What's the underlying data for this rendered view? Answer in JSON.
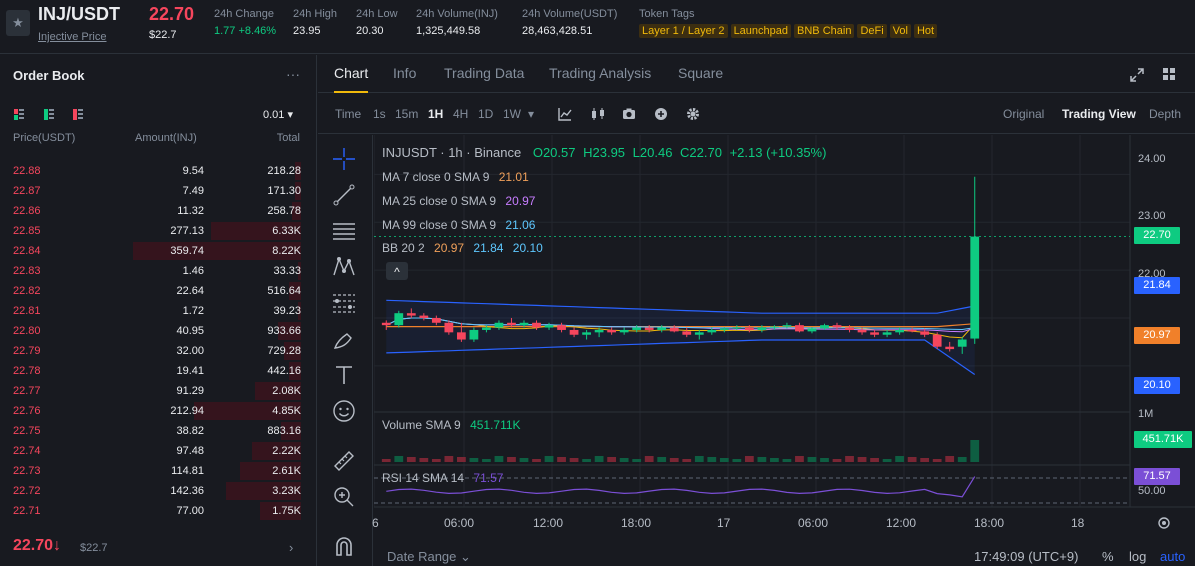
{
  "header": {
    "pair": "INJ/USDT",
    "pair_sub": "Injective Price",
    "last_price": "22.70",
    "last_price_usd": "$22.7",
    "stats": [
      {
        "key": "24h Change",
        "value": "1.77 +8.46%",
        "green": true
      },
      {
        "key": "24h High",
        "value": "23.95"
      },
      {
        "key": "24h Low",
        "value": "20.30"
      },
      {
        "key": "24h Volume(INJ)",
        "value": "1,325,449.58"
      },
      {
        "key": "24h Volume(USDT)",
        "value": "28,463,428.51"
      }
    ],
    "tags_label": "Token Tags",
    "tags": [
      "Layer 1 / Layer 2",
      "Launchpad",
      "BNB Chain",
      "DeFi",
      "Vol",
      "Hot"
    ]
  },
  "orderbook": {
    "title": "Order Book",
    "more": "···",
    "tick": "0.01 ▾",
    "headers": {
      "price": "Price(USDT)",
      "amount": "Amount(INJ)",
      "total": "Total"
    },
    "rows": [
      {
        "price": "22.88",
        "amount": "9.54",
        "total": "218.28",
        "depth": 0.02
      },
      {
        "price": "22.87",
        "amount": "7.49",
        "total": "171.30",
        "depth": 0.02
      },
      {
        "price": "22.86",
        "amount": "11.32",
        "total": "258.78",
        "depth": 0.03
      },
      {
        "price": "22.85",
        "amount": "277.13",
        "total": "6.33K",
        "depth": 0.31
      },
      {
        "price": "22.84",
        "amount": "359.74",
        "total": "8.22K",
        "depth": 0.58
      },
      {
        "price": "22.83",
        "amount": "1.46",
        "total": "33.33",
        "depth": 0.01
      },
      {
        "price": "22.82",
        "amount": "22.64",
        "total": "516.64",
        "depth": 0.04
      },
      {
        "price": "22.81",
        "amount": "1.72",
        "total": "39.23",
        "depth": 0.01
      },
      {
        "price": "22.80",
        "amount": "40.95",
        "total": "933.66",
        "depth": 0.08
      },
      {
        "price": "22.79",
        "amount": "32.00",
        "total": "729.28",
        "depth": 0.06
      },
      {
        "price": "22.78",
        "amount": "19.41",
        "total": "442.16",
        "depth": 0.04
      },
      {
        "price": "22.77",
        "amount": "91.29",
        "total": "2.08K",
        "depth": 0.16
      },
      {
        "price": "22.76",
        "amount": "212.94",
        "total": "4.85K",
        "depth": 0.37
      },
      {
        "price": "22.75",
        "amount": "38.82",
        "total": "883.16",
        "depth": 0.07
      },
      {
        "price": "22.74",
        "amount": "97.48",
        "total": "2.22K",
        "depth": 0.17
      },
      {
        "price": "22.73",
        "amount": "114.81",
        "total": "2.61K",
        "depth": 0.21
      },
      {
        "price": "22.72",
        "amount": "142.36",
        "total": "3.23K",
        "depth": 0.26
      },
      {
        "price": "22.71",
        "amount": "77.00",
        "total": "1.75K",
        "depth": 0.14
      }
    ],
    "last_price": "22.70↓",
    "last_price_usd": "$22.7",
    "arrow": "›"
  },
  "tabs": [
    "Chart",
    "Info",
    "Trading Data",
    "Trading Analysis",
    "Square"
  ],
  "toolbar": {
    "time_label": "Time",
    "intervals": [
      "1s",
      "15m",
      "1H",
      "4H",
      "1D",
      "1W"
    ],
    "active_interval": "1H",
    "interval_more": "▾",
    "views": [
      "Original",
      "Trading View",
      "Depth"
    ],
    "active_view": "Trading View"
  },
  "chart": {
    "symbol_line": "INJUSDT · 1h · Binance",
    "ohlc": {
      "o": "O20.57",
      "h": "H23.95",
      "l": "L20.46",
      "c": "C22.70",
      "chg": "+2.13 (+10.35%)"
    },
    "ma7": {
      "label": "MA 7 close 0 SMA 9",
      "value": "21.01"
    },
    "ma25": {
      "label": "MA 25 close 0 SMA 9",
      "value": "20.97"
    },
    "ma99": {
      "label": "MA 99 close 0 SMA 9",
      "value": "21.06"
    },
    "bb": {
      "label": "BB 20 2",
      "v1": "20.97",
      "v2": "21.84",
      "v3": "20.10"
    },
    "collapse": "^",
    "volume": {
      "label": "Volume SMA 9",
      "value": "451.711K"
    },
    "rsi": {
      "label": "RSI 14 SMA 14",
      "value": "71.57"
    },
    "price_axis": [
      "24.00",
      "23.00",
      "22.00",
      "1M",
      "50.00"
    ],
    "price_labels": [
      {
        "text": "22.70",
        "color": "#0ecb81"
      },
      {
        "text": "21.84",
        "color": "#2962ff"
      },
      {
        "text": "20.97",
        "color": "#f0802a"
      },
      {
        "text": "20.10",
        "color": "#2962ff"
      },
      {
        "text": "451.71K",
        "color": "#0ecb81"
      },
      {
        "text": "71.57",
        "color": "#7b4fd6"
      }
    ],
    "time_axis": [
      "6",
      "06:00",
      "12:00",
      "18:00",
      "17",
      "06:00",
      "12:00",
      "18:00",
      "18"
    ],
    "date_range": "Date Range ⌄",
    "clock": "17:49:09 (UTC+9)",
    "bottom_opts": [
      "%",
      "log",
      "auto"
    ]
  },
  "chart_data": {
    "type": "candlestick",
    "ylim": [
      19.6,
      24.3
    ],
    "candles": [
      [
        20.9,
        20.95,
        20.75,
        20.85
      ],
      [
        20.85,
        21.15,
        20.8,
        21.1
      ],
      [
        21.1,
        21.2,
        21.0,
        21.05
      ],
      [
        21.05,
        21.1,
        20.95,
        21.0
      ],
      [
        21.0,
        21.05,
        20.85,
        20.9
      ],
      [
        20.9,
        20.95,
        20.65,
        20.7
      ],
      [
        20.7,
        20.9,
        20.5,
        20.55
      ],
      [
        20.55,
        20.8,
        20.5,
        20.75
      ],
      [
        20.75,
        20.85,
        20.7,
        20.8
      ],
      [
        20.8,
        20.95,
        20.75,
        20.9
      ],
      [
        20.9,
        21.0,
        20.8,
        20.85
      ],
      [
        20.85,
        20.95,
        20.8,
        20.9
      ],
      [
        20.9,
        20.95,
        20.75,
        20.8
      ],
      [
        20.8,
        20.9,
        20.75,
        20.85
      ],
      [
        20.85,
        20.9,
        20.7,
        20.75
      ],
      [
        20.75,
        20.8,
        20.6,
        20.65
      ],
      [
        20.65,
        20.75,
        20.55,
        20.7
      ],
      [
        20.7,
        20.8,
        20.6,
        20.75
      ],
      [
        20.75,
        20.8,
        20.65,
        20.7
      ],
      [
        20.7,
        20.8,
        20.65,
        20.75
      ],
      [
        20.75,
        20.85,
        20.7,
        20.8
      ],
      [
        20.8,
        20.85,
        20.7,
        20.75
      ],
      [
        20.75,
        20.85,
        20.7,
        20.8
      ],
      [
        20.8,
        20.85,
        20.7,
        20.72
      ],
      [
        20.72,
        20.8,
        20.6,
        20.65
      ],
      [
        20.65,
        20.75,
        20.55,
        20.7
      ],
      [
        20.7,
        20.8,
        20.65,
        20.75
      ],
      [
        20.75,
        20.8,
        20.7,
        20.78
      ],
      [
        20.78,
        20.85,
        20.75,
        20.8
      ],
      [
        20.8,
        20.85,
        20.7,
        20.75
      ],
      [
        20.75,
        20.85,
        20.7,
        20.8
      ],
      [
        20.8,
        20.85,
        20.75,
        20.82
      ],
      [
        20.82,
        20.9,
        20.78,
        20.85
      ],
      [
        20.85,
        20.9,
        20.7,
        20.72
      ],
      [
        20.72,
        20.8,
        20.68,
        20.78
      ],
      [
        20.78,
        20.88,
        20.75,
        20.85
      ],
      [
        20.85,
        20.9,
        20.75,
        20.8
      ],
      [
        20.8,
        20.85,
        20.7,
        20.75
      ],
      [
        20.75,
        20.8,
        20.65,
        20.7
      ],
      [
        20.7,
        20.75,
        20.6,
        20.65
      ],
      [
        20.65,
        20.75,
        20.6,
        20.7
      ],
      [
        20.7,
        20.8,
        20.65,
        20.75
      ],
      [
        20.75,
        20.8,
        20.7,
        20.72
      ],
      [
        20.72,
        20.78,
        20.6,
        20.65
      ],
      [
        20.65,
        20.7,
        20.35,
        20.4
      ],
      [
        20.4,
        20.5,
        20.3,
        20.35
      ],
      [
        20.4,
        20.6,
        20.25,
        20.55
      ],
      [
        20.57,
        23.95,
        20.46,
        22.7
      ]
    ],
    "volume_sma": "451.711K",
    "rsi_last": 71.57
  }
}
